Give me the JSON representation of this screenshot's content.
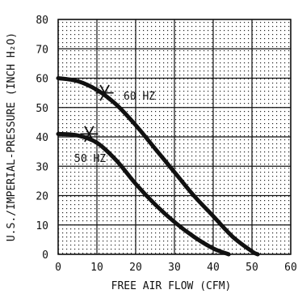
{
  "chart_data": {
    "type": "line",
    "title_fragment": "",
    "xlabel": "FREE AIR FLOW (CFM)",
    "ylabel": "U.S./IMPERIAL-PRESSURE (INCH H₂O)",
    "xlim": [
      0,
      60
    ],
    "ylim": [
      0,
      80
    ],
    "x_ticks": [
      0,
      10,
      20,
      30,
      40,
      50,
      60
    ],
    "y_ticks": [
      0,
      10,
      20,
      30,
      40,
      50,
      60,
      70,
      80
    ],
    "grid": true,
    "series": [
      {
        "name": "60 HZ",
        "x": [
          0,
          5,
          10,
          15,
          20,
          25,
          30,
          35,
          40,
          45,
          50,
          51.5
        ],
        "y": [
          60,
          59,
          56,
          51,
          44,
          36,
          28,
          20,
          13,
          6,
          1,
          0
        ]
      },
      {
        "name": "50 HZ",
        "x": [
          0,
          5,
          10,
          15,
          20,
          25,
          30,
          35,
          40,
          44
        ],
        "y": [
          41,
          40.5,
          38,
          32,
          24,
          17,
          11,
          6,
          2,
          0
        ]
      }
    ],
    "markers": [
      {
        "series": "60 HZ",
        "x": 12,
        "y": 55
      },
      {
        "series": "50 HZ",
        "x": 8,
        "y": 41
      }
    ],
    "annotations": [
      "60 HZ",
      "50 HZ"
    ],
    "colors": {
      "line": "#111111",
      "grid": "#111111",
      "background": "#ffffff"
    }
  }
}
